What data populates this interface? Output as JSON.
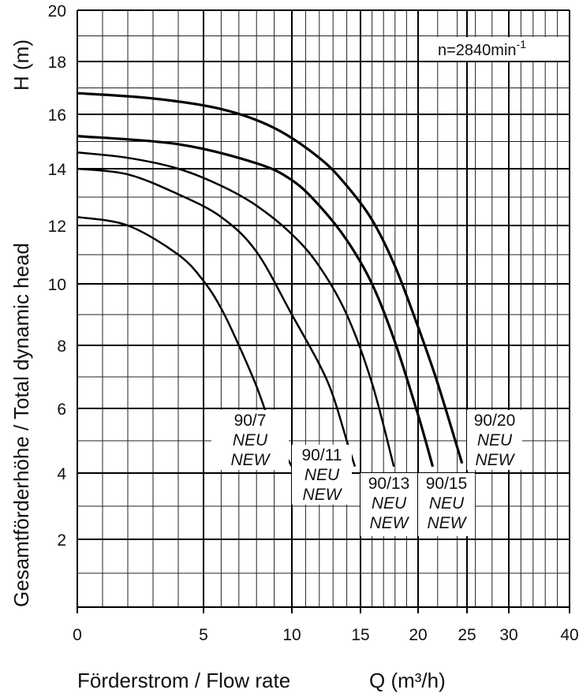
{
  "chart_data": {
    "type": "line",
    "speed_label": {
      "text": "n=2840min",
      "sup": "-1"
    },
    "xlabel": "Förderstrom  /  Flow rate",
    "xlabel_unit": "Q (m³/h)",
    "ylabel": "Gesamtförderhöhe  /  Total dynamic head",
    "ylabel_unit": "H (m)",
    "ylim": [
      0,
      20
    ],
    "xlim": [
      0,
      40
    ],
    "x_scale": "linear to 20, compressed 20-40",
    "grid": true,
    "x_ticks": [
      "0",
      "5",
      "10",
      "15",
      "20",
      "25",
      "30",
      "40"
    ],
    "y_ticks": [
      "2",
      "4",
      "6",
      "8",
      "10",
      "12",
      "14",
      "16",
      "18",
      "20"
    ],
    "series": [
      {
        "name": "90/7",
        "label": [
          "90/7",
          "NEU",
          "NEW"
        ],
        "x": [
          0,
          2,
          4,
          5,
          6,
          7,
          8,
          9,
          10,
          10.4
        ],
        "y": [
          12.3,
          12.0,
          11.0,
          10.1,
          9.2,
          8.0,
          6.7,
          5.2,
          4.2,
          3.8
        ]
      },
      {
        "name": "90/11",
        "label": [
          "90/11",
          "NEU",
          "NEW"
        ],
        "x": [
          0,
          2,
          4,
          6,
          8,
          10,
          12,
          13,
          14,
          14.6
        ],
        "y": [
          14.0,
          13.8,
          13.1,
          12.3,
          11.1,
          9.0,
          7.4,
          6.4,
          5.0,
          4.2
        ]
      },
      {
        "name": "90/13",
        "label": [
          "90/13",
          "NEU",
          "NEW"
        ],
        "x": [
          0,
          2,
          4,
          6,
          8,
          10,
          12,
          14,
          16,
          17.9
        ],
        "y": [
          14.6,
          14.4,
          14.0,
          13.4,
          12.7,
          11.7,
          10.6,
          9.0,
          6.8,
          4.2
        ]
      },
      {
        "name": "90/15",
        "label": [
          "90/15",
          "NEU",
          "NEW"
        ],
        "x": [
          0,
          4,
          8,
          10,
          12,
          14,
          16,
          18,
          20,
          21.5
        ],
        "y": [
          15.2,
          14.9,
          14.2,
          13.6,
          12.7,
          11.5,
          10.0,
          8.1,
          5.8,
          4.2
        ]
      },
      {
        "name": "90/20",
        "label": [
          "90/20",
          "NEU",
          "NEW"
        ],
        "x": [
          0,
          3,
          6,
          9,
          12,
          14,
          16,
          18,
          20,
          22,
          24.5
        ],
        "y": [
          16.8,
          16.6,
          16.2,
          15.5,
          14.4,
          13.4,
          12.2,
          10.6,
          8.6,
          6.8,
          4.3
        ]
      }
    ]
  }
}
